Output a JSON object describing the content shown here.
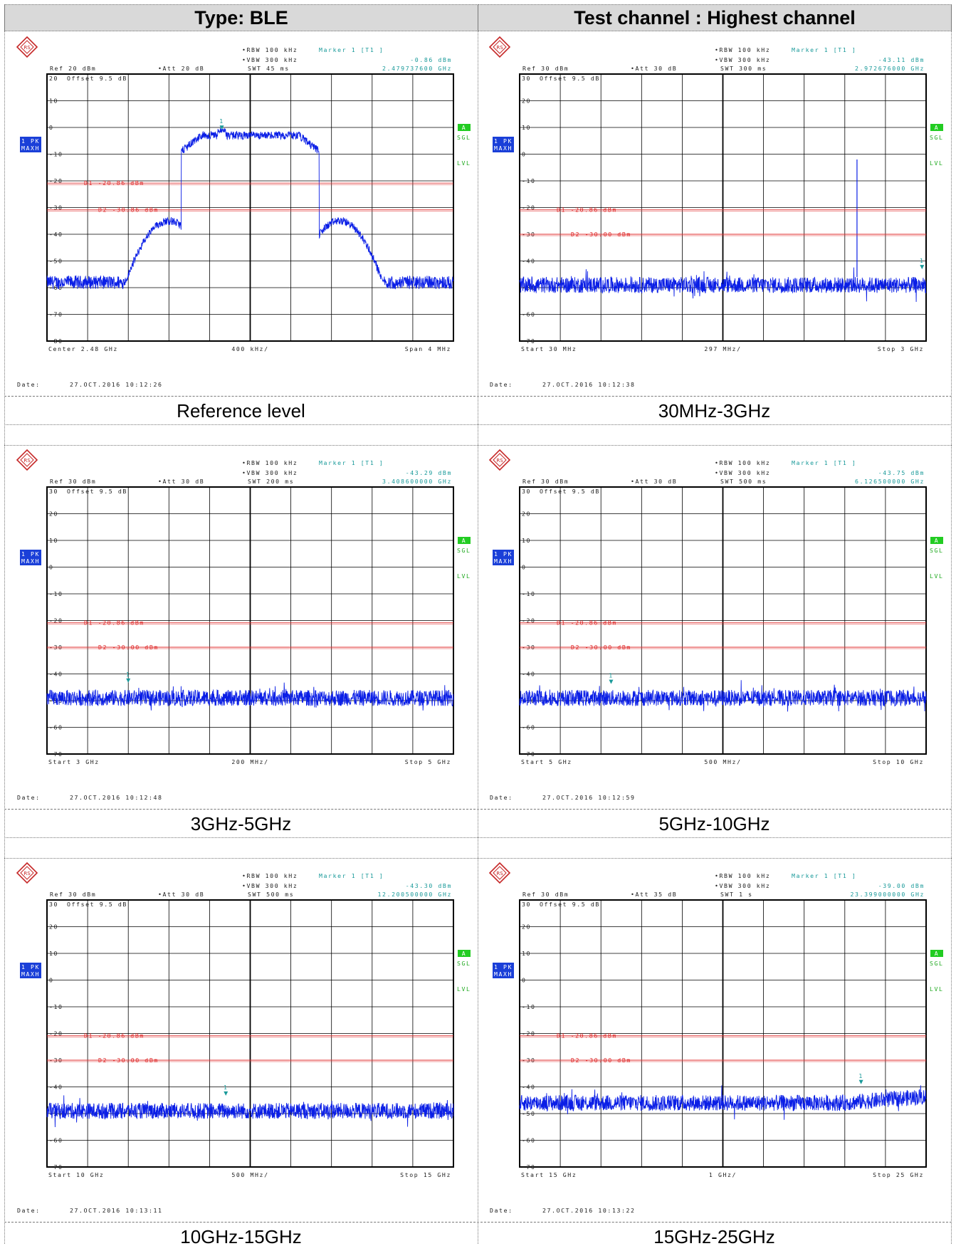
{
  "header": {
    "type_label": "Type: BLE",
    "channel_label": "Test channel : Highest channel"
  },
  "analyzer": {
    "logo": "rohde-schwarz-logo",
    "trace_badge_line1": "1 PK",
    "trace_badge_line2": "MAXH",
    "a_badge": "A",
    "sgl_label": "SGL",
    "lvl_label": "LVL",
    "marker_symbol": "1",
    "date_label": "Date:",
    "colors": {
      "trace": "#0a1ee6",
      "limit": "#e03030",
      "marker": "#1a9a9a",
      "badge": "#1a3fd8",
      "green_badge": "#22cc22"
    }
  },
  "chart_data": [
    {
      "type": "line",
      "caption": "Reference level",
      "rbw": "RBW 100 kHz",
      "vbw": "VBW 300 kHz",
      "swt": "SWT 45 ms",
      "marker_title": "Marker 1 [T1 ]",
      "marker_level": "-0.86 dBm",
      "marker_freq": "2.479737600 GHz",
      "ref": "Ref  20 dBm",
      "att": "Att  20 dB",
      "offset": "Offset  9.5 dB",
      "y_ticks": [
        "20",
        "10",
        "0",
        "-10",
        "-20",
        "-30",
        "-40",
        "-50",
        "-60",
        "-70",
        "-80"
      ],
      "ylim": [
        -80,
        20
      ],
      "d1_label": "D1 -20.86 dBm",
      "d1_level": -20.86,
      "d2_label": "D2 -30.86 dBm",
      "d2_level": -30.86,
      "x_start_label": "Center 2.48 GHz",
      "x_div_label": "400 kHz/",
      "x_stop_label": "Span 4 MHz",
      "date": "27.OCT.2016  10:12:26",
      "shape": "ble-carrier",
      "marker_x_fraction": 0.43,
      "marker_level_value": -0.86,
      "noise_floor": -58,
      "spur": null
    },
    {
      "type": "line",
      "caption": "30MHz-3GHz",
      "rbw": "RBW 100 kHz",
      "vbw": "VBW 300 kHz",
      "swt": "SWT 300 ms",
      "marker_title": "Marker 1 [T1 ]",
      "marker_level": "-43.11 dBm",
      "marker_freq": "2.972676000 GHz",
      "ref": "Ref  30 dBm",
      "att": "Att  30 dB",
      "offset": "Offset  9.5 dB",
      "y_ticks": [
        "30",
        "20",
        "10",
        "0",
        "-10",
        "-20",
        "-30",
        "-40",
        "-50",
        "-60",
        "-70"
      ],
      "ylim": [
        -70,
        30
      ],
      "d1_label": "D1 -20.86 dBm",
      "d1_level": -20.86,
      "d2_label": "D2 -30.00 dBm",
      "d2_level": -30.0,
      "x_start_label": "Start 30 MHz",
      "x_div_label": "297 MHz/",
      "x_stop_label": "Stop 3 GHz",
      "date": "27.OCT.2016  10:12:38",
      "shape": "noise",
      "marker_x_fraction": 0.99,
      "marker_level_value": -43.11,
      "noise_floor": -49,
      "spur": {
        "x_fraction": 0.83,
        "level": -2
      }
    },
    {
      "type": "line",
      "caption": "3GHz-5GHz",
      "rbw": "RBW 100 kHz",
      "vbw": "VBW 300 kHz",
      "swt": "SWT 200 ms",
      "marker_title": "Marker 1 [T1 ]",
      "marker_level": "-43.29 dBm",
      "marker_freq": "3.408600000 GHz",
      "ref": "Ref  30 dBm",
      "att": "Att  30 dB",
      "offset": "Offset  9.5 dB",
      "y_ticks": [
        "30",
        "20",
        "10",
        "0",
        "-10",
        "-20",
        "-30",
        "-40",
        "-50",
        "-60",
        "-70"
      ],
      "ylim": [
        -70,
        30
      ],
      "d1_label": "D1 -20.86 dBm",
      "d1_level": -20.86,
      "d2_label": "D2 -30.00 dBm",
      "d2_level": -30.0,
      "x_start_label": "Start 3 GHz",
      "x_div_label": "200 MHz/",
      "x_stop_label": "Stop 5 GHz",
      "date": "27.OCT.2016  10:12:48",
      "shape": "noise",
      "marker_x_fraction": 0.2,
      "marker_level_value": -43.29,
      "noise_floor": -49,
      "spur": null
    },
    {
      "type": "line",
      "caption": "5GHz-10GHz",
      "rbw": "RBW 100 kHz",
      "vbw": "VBW 300 kHz",
      "swt": "SWT 500 ms",
      "marker_title": "Marker 1 [T1 ]",
      "marker_level": "-43.75 dBm",
      "marker_freq": "6.126500000 GHz",
      "ref": "Ref  30 dBm",
      "att": "Att  30 dB",
      "offset": "Offset  9.5 dB",
      "y_ticks": [
        "30",
        "20",
        "10",
        "0",
        "-10",
        "-20",
        "-30",
        "-40",
        "-50",
        "-60",
        "-70"
      ],
      "ylim": [
        -70,
        30
      ],
      "d1_label": "D1 -20.86 dBm",
      "d1_level": -20.86,
      "d2_label": "D2 -30.00 dBm",
      "d2_level": -30.0,
      "x_start_label": "Start 5 GHz",
      "x_div_label": "500 MHz/",
      "x_stop_label": "Stop 10 GHz",
      "date": "27.OCT.2016  10:12:59",
      "shape": "noise",
      "marker_x_fraction": 0.225,
      "marker_level_value": -43.75,
      "noise_floor": -49,
      "spur": null
    },
    {
      "type": "line",
      "caption": "10GHz-15GHz",
      "rbw": "RBW 100 kHz",
      "vbw": "VBW 300 kHz",
      "swt": "SWT 500 ms",
      "marker_title": "Marker 1 [T1 ]",
      "marker_level": "-43.30 dBm",
      "marker_freq": "12.200500000 GHz",
      "ref": "Ref  30 dBm",
      "att": "Att  30 dB",
      "offset": "Offset  9.5 dB",
      "y_ticks": [
        "30",
        "20",
        "10",
        "0",
        "-10",
        "-20",
        "-30",
        "-40",
        "-50",
        "-60",
        "-70"
      ],
      "ylim": [
        -70,
        30
      ],
      "d1_label": "D1 -20.86 dBm",
      "d1_level": -20.86,
      "d2_label": "D2 -30.00 dBm",
      "d2_level": -30.0,
      "x_start_label": "Start 10 GHz",
      "x_div_label": "500 MHz/",
      "x_stop_label": "Stop 15 GHz",
      "date": "27.OCT.2016  10:13:11",
      "shape": "noise",
      "marker_x_fraction": 0.44,
      "marker_level_value": -43.3,
      "noise_floor": -49,
      "spur": null
    },
    {
      "type": "line",
      "caption": "15GHz-25GHz",
      "rbw": "RBW 100 kHz",
      "vbw": "VBW 300 kHz",
      "swt": "SWT 1 s",
      "marker_title": "Marker 1 [T1 ]",
      "marker_level": "-39.00 dBm",
      "marker_freq": "23.399000000 GHz",
      "ref": "Ref  30 dBm",
      "att": "Att  35 dB",
      "offset": "Offset  9.5 dB",
      "y_ticks": [
        "30",
        "20",
        "10",
        "0",
        "-10",
        "-20",
        "-30",
        "-40",
        "-50",
        "-60",
        "-70"
      ],
      "ylim": [
        -70,
        30
      ],
      "d1_label": "D1 -20.86 dBm",
      "d1_level": -20.86,
      "d2_label": "D2 -30.00 dBm",
      "d2_level": -30.0,
      "x_start_label": "Start 15 GHz",
      "x_div_label": "1 GHz/",
      "x_stop_label": "Stop 25 GHz",
      "date": "27.OCT.2016  10:13:22",
      "shape": "noise-rising",
      "marker_x_fraction": 0.84,
      "marker_level_value": -39.0,
      "noise_floor": -46,
      "spur": null
    }
  ]
}
